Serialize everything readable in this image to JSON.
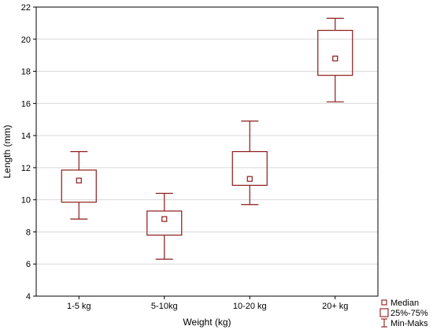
{
  "chart_data": {
    "type": "boxplot",
    "title": "",
    "xlabel": "Weight (kg)",
    "ylabel": "Length (mm)",
    "ylim": [
      4,
      22
    ],
    "yticks": [
      4,
      6,
      8,
      10,
      12,
      14,
      16,
      18,
      20,
      22
    ],
    "categories": [
      "1-5 kg",
      "5-10kg",
      "10-20 kg",
      "20+ kg"
    ],
    "boxes": [
      {
        "category": "1-5 kg",
        "min": 8.8,
        "q1": 9.85,
        "median": 11.2,
        "q3": 11.85,
        "max": 13.0
      },
      {
        "category": "5-10kg",
        "min": 6.3,
        "q1": 7.8,
        "median": 8.8,
        "q3": 9.3,
        "max": 10.4
      },
      {
        "category": "10-20 kg",
        "min": 9.7,
        "q1": 10.9,
        "median": 11.3,
        "q3": 13.0,
        "max": 14.9
      },
      {
        "category": "20+ kg",
        "min": 16.1,
        "q1": 17.75,
        "median": 18.8,
        "q3": 20.55,
        "max": 21.3
      }
    ],
    "grid": "horizontal",
    "legend": {
      "placement": "bottom-right",
      "entries": [
        {
          "label": "Median",
          "symbol": "small-square"
        },
        {
          "label": "25%-75%",
          "symbol": "box"
        },
        {
          "label": "Min-Maks",
          "symbol": "whisker"
        }
      ]
    },
    "colors": {
      "box": "#8b1a1a",
      "grid": "#d9d9d9",
      "axis": "#000000"
    }
  }
}
